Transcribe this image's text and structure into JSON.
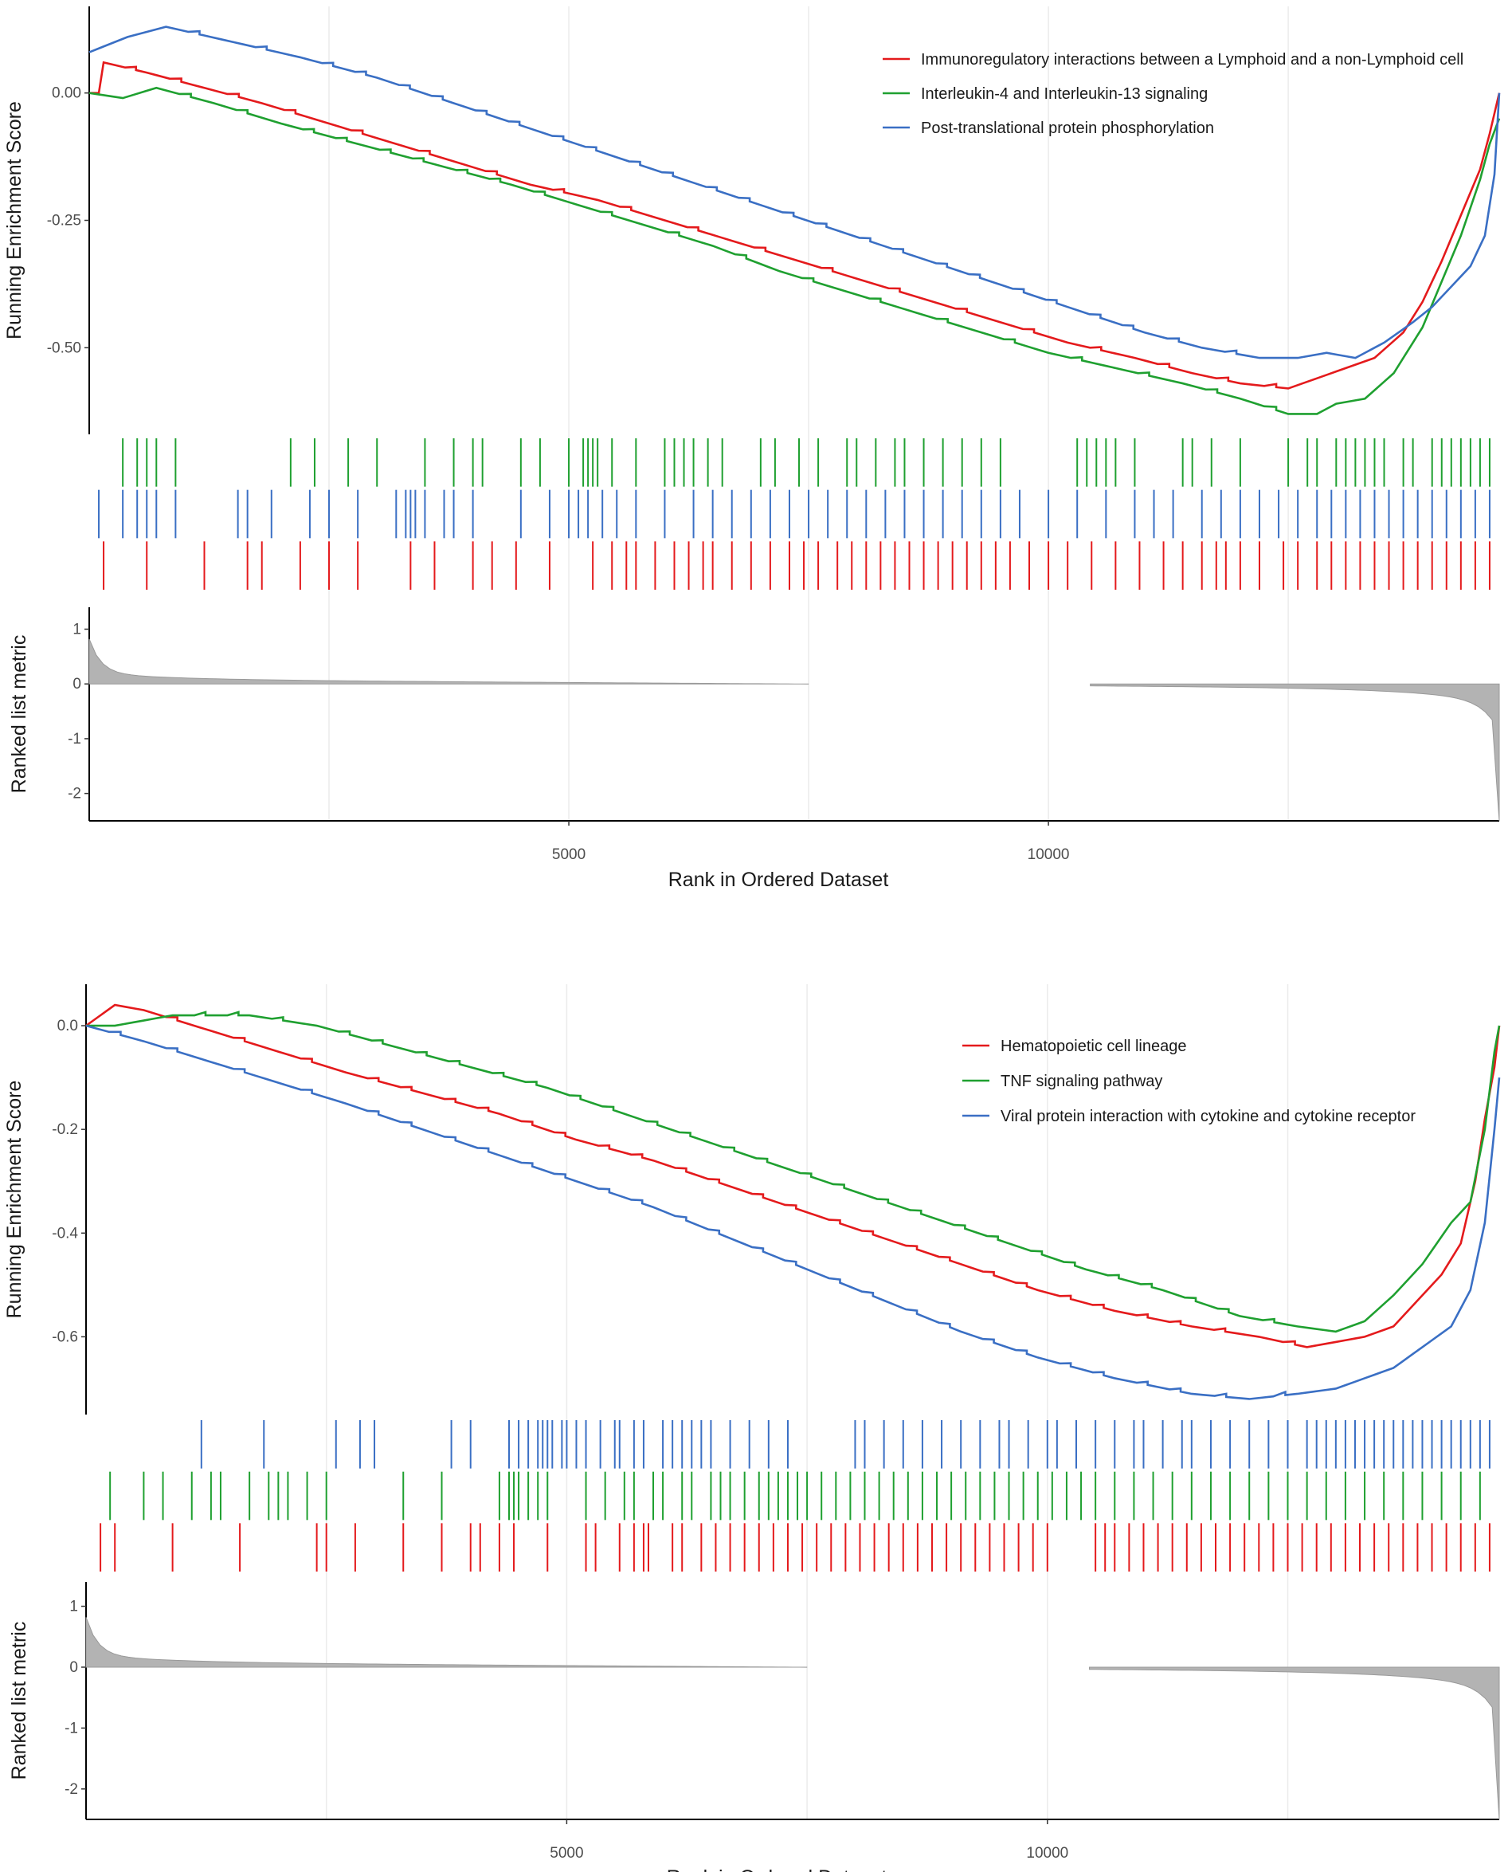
{
  "chart_data": [
    {
      "type": "line",
      "title": "",
      "xlabel": "Rank in Ordered Dataset",
      "ylabel": "Running Enrichment Score",
      "metric_label": "Ranked list metric",
      "xlim": [
        0,
        14700
      ],
      "ylim": [
        -0.67,
        0.17
      ],
      "metric_ylim": [
        -2.5,
        1.4
      ],
      "xticks": [
        5000,
        10000
      ],
      "xtick_labels": [
        "5000",
        "10000"
      ],
      "yticks": [
        0,
        -0.25,
        -0.5
      ],
      "ytick_labels": [
        "0.00",
        "-0.25",
        "-0.50"
      ],
      "metric_yticks": [
        1,
        0,
        -1,
        -2
      ],
      "metric_ytick_labels": [
        "1",
        "0",
        "-1",
        "-2"
      ],
      "grid": true,
      "legend_position": "top-right",
      "gap_range": [
        7500,
        10400
      ],
      "series": [
        {
          "name": "Immunoregulatory interactions between a Lymphoid and a non-Lymphoid cell",
          "color": "#e41a1c",
          "x": [
            0,
            100,
            150,
            600,
            1200,
            1800,
            2500,
            3200,
            3900,
            4600,
            5300,
            6000,
            6700,
            7400,
            8100,
            8800,
            9500,
            10200,
            10900,
            11500,
            12000,
            12500,
            12800,
            13100,
            13400,
            13700,
            13900,
            14100,
            14300,
            14500,
            14600,
            14700
          ],
          "values": [
            0.0,
            0.0,
            0.06,
            0.04,
            0.01,
            -0.02,
            -0.06,
            -0.1,
            -0.14,
            -0.18,
            -0.21,
            -0.25,
            -0.29,
            -0.33,
            -0.37,
            -0.41,
            -0.45,
            -0.49,
            -0.52,
            -0.55,
            -0.57,
            -0.58,
            -0.56,
            -0.54,
            -0.52,
            -0.47,
            -0.41,
            -0.33,
            -0.24,
            -0.15,
            -0.08,
            0.0
          ],
          "hits": [
            150,
            600,
            1200,
            1650,
            1800,
            2200,
            2500,
            2800,
            3350,
            3600,
            4000,
            4200,
            4450,
            4800,
            5250,
            5450,
            5600,
            5700,
            5900,
            6100,
            6250,
            6400,
            6500,
            6700,
            6900,
            7100,
            7300,
            7450,
            7600,
            7800,
            7950,
            8100,
            8250,
            8400,
            8550,
            8700,
            8850,
            9000,
            9150,
            9300,
            9450,
            9600,
            9800,
            10000,
            10200,
            10450,
            10700,
            10950,
            11200,
            11400,
            11600,
            11750,
            11850,
            12000,
            12200,
            12450,
            12600,
            12800,
            12950,
            13100,
            13250,
            13400,
            13550,
            13700,
            13850,
            14000,
            14150,
            14300,
            14450,
            14600
          ]
        },
        {
          "name": "Interleukin-4 and Interleukin-13 signaling",
          "color": "#1fa030",
          "x": [
            0,
            350,
            700,
            1300,
            2000,
            2800,
            3600,
            4400,
            5100,
            5800,
            6500,
            7200,
            7900,
            8600,
            9300,
            10000,
            10700,
            11400,
            12000,
            12500,
            12800,
            13000,
            13300,
            13600,
            13900,
            14100,
            14300,
            14500,
            14600,
            14700
          ],
          "values": [
            0.0,
            -0.01,
            0.01,
            -0.02,
            -0.06,
            -0.1,
            -0.14,
            -0.18,
            -0.22,
            -0.26,
            -0.3,
            -0.35,
            -0.39,
            -0.43,
            -0.47,
            -0.51,
            -0.54,
            -0.57,
            -0.6,
            -0.63,
            -0.63,
            -0.61,
            -0.6,
            -0.55,
            -0.46,
            -0.37,
            -0.28,
            -0.17,
            -0.1,
            -0.05
          ],
          "hits": [
            350,
            500,
            600,
            700,
            900,
            2100,
            2350,
            2700,
            3000,
            3500,
            3800,
            4000,
            4100,
            4500,
            4700,
            5000,
            5150,
            5200,
            5250,
            5300,
            5450,
            5700,
            6000,
            6100,
            6200,
            6300,
            6450,
            6600,
            7000,
            7150,
            7400,
            7600,
            7900,
            8000,
            8200,
            8400,
            8500,
            8700,
            8900,
            9100,
            9300,
            9500,
            10300,
            10400,
            10500,
            10600,
            10700,
            10900,
            11400,
            11500,
            11700,
            12000,
            12500,
            12700,
            12800,
            13000,
            13100,
            13200,
            13300,
            13400,
            13500,
            13700,
            13800,
            14000,
            14100,
            14200,
            14300,
            14400,
            14500,
            14600
          ]
        },
        {
          "name": "Post-translational protein phosphorylation",
          "color": "#3a6fc4",
          "x": [
            0,
            400,
            800,
            1500,
            2200,
            3000,
            3800,
            4600,
            5400,
            6200,
            7000,
            7800,
            8600,
            9400,
            10200,
            11000,
            11600,
            12200,
            12600,
            12900,
            13200,
            13500,
            13800,
            14000,
            14200,
            14400,
            14550,
            14650,
            14700
          ],
          "values": [
            0.08,
            0.11,
            0.13,
            0.1,
            0.07,
            0.03,
            -0.02,
            -0.07,
            -0.12,
            -0.17,
            -0.22,
            -0.27,
            -0.32,
            -0.37,
            -0.42,
            -0.47,
            -0.5,
            -0.52,
            -0.52,
            -0.51,
            -0.52,
            -0.49,
            -0.45,
            -0.42,
            -0.38,
            -0.34,
            -0.28,
            -0.16,
            0.0
          ],
          "hits": [
            100,
            350,
            500,
            600,
            700,
            900,
            1550,
            1650,
            1900,
            2300,
            2500,
            2800,
            3200,
            3300,
            3350,
            3400,
            3500,
            3700,
            3800,
            4000,
            4500,
            4800,
            5000,
            5100,
            5200,
            5350,
            5500,
            5700,
            6000,
            6300,
            6500,
            6700,
            6900,
            7100,
            7300,
            7500,
            7700,
            7900,
            8100,
            8300,
            8500,
            8700,
            8900,
            9100,
            9300,
            9500,
            9700,
            10000,
            10300,
            10600,
            10900,
            11100,
            11300,
            11600,
            11800,
            12000,
            12200,
            12400,
            12600,
            12800,
            12950,
            13100,
            13250,
            13400,
            13550,
            13700,
            13850,
            14000,
            14150,
            14300,
            14450,
            14600
          ]
        }
      ]
    },
    {
      "type": "line",
      "title": "",
      "xlabel": "Rank in Ordered Dataset",
      "ylabel": "Running Enrichment Score",
      "metric_label": "Ranked list metric",
      "xlim": [
        0,
        14700
      ],
      "ylim": [
        -0.75,
        0.08
      ],
      "metric_ylim": [
        -2.5,
        1.4
      ],
      "xticks": [
        5000,
        10000
      ],
      "xtick_labels": [
        "5000",
        "10000"
      ],
      "yticks": [
        0,
        -0.2,
        -0.4,
        -0.6
      ],
      "ytick_labels": [
        "0.0",
        "-0.2",
        "-0.4",
        "-0.6"
      ],
      "metric_yticks": [
        1,
        0,
        -1,
        -2
      ],
      "metric_ytick_labels": [
        "1",
        "0",
        "-1",
        "-2"
      ],
      "grid": true,
      "legend_position": "top-right",
      "gap_range": [
        7500,
        10400
      ],
      "series": [
        {
          "name": "Hematopoietic cell lineage",
          "color": "#e41a1c",
          "x": [
            0,
            300,
            600,
            1300,
            2000,
            2700,
            3500,
            4300,
            5100,
            5900,
            6700,
            7500,
            8300,
            9100,
            9900,
            10700,
            11500,
            12200,
            12700,
            13000,
            13300,
            13600,
            13900,
            14100,
            14300,
            14450,
            14550,
            14650,
            14700
          ],
          "values": [
            0.0,
            0.04,
            0.03,
            -0.01,
            -0.05,
            -0.09,
            -0.13,
            -0.17,
            -0.22,
            -0.26,
            -0.31,
            -0.36,
            -0.41,
            -0.46,
            -0.51,
            -0.55,
            -0.58,
            -0.6,
            -0.62,
            -0.61,
            -0.6,
            -0.58,
            -0.52,
            -0.48,
            -0.42,
            -0.3,
            -0.18,
            -0.08,
            0.0
          ],
          "hits": [
            150,
            300,
            900,
            1600,
            2400,
            2500,
            2800,
            3300,
            3700,
            4000,
            4100,
            4300,
            4450,
            4800,
            5200,
            5300,
            5550,
            5700,
            5800,
            5850,
            6100,
            6200,
            6400,
            6550,
            6700,
            6850,
            7000,
            7150,
            7300,
            7450,
            7600,
            7750,
            7900,
            8050,
            8200,
            8350,
            8500,
            8650,
            8800,
            8950,
            9100,
            9250,
            9400,
            9550,
            9700,
            9850,
            10000,
            10500,
            10600,
            10700,
            10850,
            11000,
            11150,
            11300,
            11450,
            11600,
            11750,
            11900,
            12050,
            12200,
            12350,
            12500,
            12650,
            12800,
            12950,
            13100,
            13250,
            13400,
            13550,
            13700,
            13850,
            14000,
            14150,
            14300,
            14450,
            14600
          ]
        },
        {
          "name": "TNF signaling pathway",
          "color": "#1fa030",
          "x": [
            0,
            300,
            600,
            900,
            1700,
            2400,
            3200,
            4000,
            4800,
            5600,
            6400,
            7200,
            8000,
            8800,
            9600,
            10400,
            11200,
            12000,
            12600,
            13000,
            13300,
            13600,
            13900,
            14200,
            14400,
            14550,
            14650,
            14700
          ],
          "values": [
            0.0,
            0.0,
            0.01,
            0.02,
            0.02,
            0.0,
            -0.04,
            -0.08,
            -0.12,
            -0.17,
            -0.22,
            -0.27,
            -0.32,
            -0.37,
            -0.42,
            -0.47,
            -0.51,
            -0.56,
            -0.58,
            -0.59,
            -0.57,
            -0.52,
            -0.46,
            -0.38,
            -0.34,
            -0.2,
            -0.05,
            0.0
          ],
          "hits": [
            250,
            600,
            800,
            1100,
            1300,
            1400,
            1700,
            1900,
            2000,
            2100,
            2300,
            2500,
            3300,
            3700,
            4300,
            4400,
            4450,
            4500,
            4600,
            4700,
            4800,
            5200,
            5400,
            5600,
            5700,
            5900,
            6000,
            6200,
            6300,
            6500,
            6600,
            6700,
            6850,
            7000,
            7100,
            7200,
            7300,
            7400,
            7500,
            7650,
            7800,
            7950,
            8100,
            8250,
            8400,
            8550,
            8700,
            8850,
            9000,
            9150,
            9300,
            9450,
            9600,
            9750,
            9900,
            10050,
            10200,
            10350,
            10500,
            10700,
            10900,
            11100,
            11300,
            11500,
            11700,
            11900,
            12100,
            12300,
            12500,
            12700,
            12900,
            13100,
            13300,
            13500,
            13700,
            13900,
            14100,
            14300,
            14500
          ]
        },
        {
          "name": "Viral protein interaction with cytokine and cytokine receptor",
          "color": "#3a6fc4",
          "x": [
            0,
            600,
            1300,
            2000,
            2700,
            3500,
            4300,
            5100,
            5900,
            6700,
            7500,
            8300,
            9100,
            9900,
            10700,
            11500,
            12100,
            12600,
            13000,
            13300,
            13600,
            13900,
            14200,
            14400,
            14550,
            14650,
            14700
          ],
          "values": [
            0.0,
            -0.03,
            -0.07,
            -0.11,
            -0.15,
            -0.2,
            -0.25,
            -0.3,
            -0.35,
            -0.41,
            -0.47,
            -0.53,
            -0.59,
            -0.64,
            -0.68,
            -0.71,
            -0.72,
            -0.71,
            -0.7,
            -0.68,
            -0.66,
            -0.62,
            -0.58,
            -0.51,
            -0.38,
            -0.2,
            -0.1
          ],
          "hits": [
            1200,
            1850,
            2600,
            2850,
            3000,
            3800,
            4000,
            4400,
            4500,
            4600,
            4700,
            4750,
            4800,
            4850,
            4950,
            5000,
            5100,
            5200,
            5350,
            5500,
            5550,
            5700,
            5800,
            6000,
            6100,
            6200,
            6300,
            6400,
            6500,
            6700,
            6900,
            7100,
            7300,
            8000,
            8100,
            8300,
            8500,
            8700,
            8900,
            9100,
            9300,
            9500,
            9600,
            9800,
            10000,
            10100,
            10300,
            10500,
            10700,
            10900,
            11000,
            11200,
            11400,
            11500,
            11700,
            11900,
            12100,
            12300,
            12500,
            12700,
            12800,
            12900,
            13000,
            13100,
            13200,
            13300,
            13400,
            13500,
            13600,
            13700,
            13800,
            13900,
            14000,
            14100,
            14200,
            14300,
            14400,
            14500,
            14600
          ]
        }
      ]
    }
  ]
}
